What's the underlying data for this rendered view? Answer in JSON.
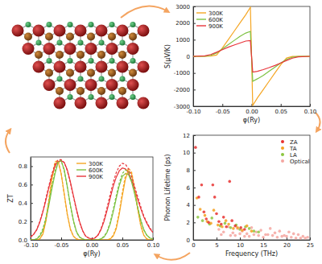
{
  "chart_data": [
    {
      "type": "line",
      "x_label": "φ(Ry)",
      "y_label": "S(μV/K)",
      "x": [
        -0.1,
        -0.08,
        -0.07,
        -0.06,
        -0.05,
        -0.04,
        -0.03,
        -0.02,
        -0.01,
        -0.002,
        0.002,
        0.01,
        0.02,
        0.03,
        0.04,
        0.05,
        0.06,
        0.07,
        0.08,
        0.1
      ],
      "xlim": [
        -0.1,
        0.1
      ],
      "xticks": [
        {
          "value": -0.1,
          "label": "-0.10"
        },
        {
          "value": -0.05,
          "label": "-0.05"
        },
        {
          "value": 0,
          "label": "0.00"
        },
        {
          "value": 0.05,
          "label": "0.05"
        },
        {
          "value": 0.1,
          "label": "0.10"
        }
      ],
      "ylim": [
        -3000,
        3000
      ],
      "yticks": [
        -3000,
        -2000,
        -1000,
        0,
        1000,
        2000,
        3000
      ],
      "legend": "upper left",
      "series": [
        {
          "name": "300K",
          "color": "#f5a623",
          "line_style": "solid",
          "values": [
            0,
            0,
            20,
            80,
            500,
            1000,
            1500,
            2000,
            2500,
            2950,
            -2950,
            -2500,
            -2000,
            -1500,
            -1000,
            -500,
            -100,
            -10,
            0,
            0
          ]
        },
        {
          "name": "600K",
          "color": "#7dc242",
          "line_style": "solid",
          "values": [
            0,
            10,
            60,
            200,
            450,
            700,
            950,
            1200,
            1400,
            1500,
            -1500,
            -1350,
            -1150,
            -900,
            -650,
            -400,
            -180,
            -50,
            -10,
            0
          ]
        },
        {
          "name": "900K",
          "color": "#e8343a",
          "line_style": "solid",
          "values": [
            0,
            30,
            110,
            250,
            400,
            550,
            680,
            800,
            920,
            950,
            -950,
            -900,
            -800,
            -680,
            -550,
            -400,
            -250,
            -110,
            -30,
            0
          ]
        }
      ]
    },
    {
      "type": "scatter",
      "x_label": "Frequency (THz)",
      "y_label": "Phonon Lifetime (ps)",
      "xlim": [
        0,
        25
      ],
      "xticks": [
        0,
        5,
        10,
        15,
        20,
        25
      ],
      "ylim": [
        0,
        12
      ],
      "yticks": [
        0,
        2,
        4,
        6,
        8,
        10,
        12
      ],
      "legend": "upper right",
      "series": [
        {
          "name": "ZA",
          "color": "#e8302f",
          "marker": "circle",
          "x": [
            0.5,
            1.2,
            1.8,
            2.3,
            2.8,
            3.3,
            4.2,
            4.6,
            5.0,
            5.5,
            6.0,
            6.5,
            7.1,
            7.8,
            8.3,
            9.0,
            10.2,
            11.0
          ],
          "values": [
            10.6,
            4.9,
            6.3,
            3.2,
            2.4,
            2.0,
            6.3,
            4.9,
            3.0,
            2.1,
            1.8,
            2.6,
            1.5,
            6.7,
            2.2,
            1.6,
            1.4,
            1.2
          ]
        },
        {
          "name": "TA",
          "color": "#f5a020",
          "marker": "circle",
          "x": [
            0.8,
            1.5,
            2.5,
            3.0,
            3.8,
            4.4,
            5.3,
            6.2,
            7.0,
            7.6,
            8.6,
            9.5,
            10.5,
            11.5,
            12.5
          ],
          "values": [
            4.8,
            3.5,
            2.8,
            2.1,
            1.9,
            3.4,
            1.7,
            1.5,
            2.2,
            1.8,
            1.3,
            1.4,
            1.1,
            1.6,
            1.0
          ]
        },
        {
          "name": "LA",
          "color": "#8cc63f",
          "marker": "circle",
          "x": [
            1.0,
            2.0,
            3.5,
            4.0,
            5.8,
            6.8,
            8.0,
            9.2,
            10.0,
            11.2,
            12.0,
            13.0,
            14.0
          ],
          "values": [
            2.6,
            2.2,
            1.8,
            2.5,
            1.6,
            1.9,
            1.4,
            1.7,
            1.2,
            1.5,
            1.3,
            1.0,
            0.9
          ]
        },
        {
          "name": "Optical",
          "color": "#f4a6a0",
          "marker": "circle",
          "x": [
            5.5,
            6.5,
            7.5,
            8.5,
            9.5,
            10.5,
            11.5,
            12.5,
            13.5,
            14.5,
            15.5,
            16.5,
            17.5,
            18.5,
            19.5,
            20.5,
            21.5,
            22.5,
            23.5,
            24.5,
            9,
            11,
            13,
            15,
            17,
            19,
            21,
            23,
            6,
            8,
            10,
            12,
            14,
            16,
            18,
            20,
            22,
            24
          ],
          "values": [
            1.2,
            0.9,
            1.5,
            0.8,
            1.3,
            1.0,
            0.7,
            1.4,
            0.9,
            1.1,
            0.6,
            1.3,
            0.8,
            1.0,
            0.5,
            0.9,
            0.7,
            0.6,
            0.4,
            0.3,
            0.5,
            0.4,
            0.6,
            0.3,
            0.5,
            0.4,
            0.3,
            0.2,
            0.6,
            0.5,
            0.7,
            0.4,
            0.5,
            0.6,
            0.3,
            0.4,
            0.2,
            0.2
          ]
        }
      ]
    },
    {
      "type": "line",
      "x_label": "φ(Ry)",
      "y_label": "ZT",
      "x": [
        -0.1,
        -0.095,
        -0.09,
        -0.085,
        -0.08,
        -0.075,
        -0.07,
        -0.065,
        -0.06,
        -0.055,
        -0.05,
        -0.045,
        -0.04,
        -0.035,
        -0.03,
        -0.025,
        -0.02,
        -0.015,
        -0.01,
        -0.005,
        0,
        0.005,
        0.01,
        0.015,
        0.02,
        0.025,
        0.03,
        0.035,
        0.04,
        0.045,
        0.05,
        0.055,
        0.06,
        0.065,
        0.07,
        0.075,
        0.08,
        0.085,
        0.09,
        0.095,
        0.1
      ],
      "xlim": [
        -0.1,
        0.1
      ],
      "xticks": [
        {
          "value": -0.1,
          "label": "-0.10"
        },
        {
          "value": -0.05,
          "label": "-0.05"
        },
        {
          "value": 0,
          "label": "0.00"
        },
        {
          "value": 0.05,
          "label": "0.05"
        },
        {
          "value": 0.1,
          "label": "0.10"
        }
      ],
      "ylim": [
        0,
        0.9
      ],
      "yticks": [
        {
          "value": 0,
          "label": "0.0"
        },
        0.2,
        0.4,
        0.6,
        0.8
      ],
      "legend": "upper center",
      "series": [
        {
          "name": "300K",
          "color": "#f5a623",
          "line_style": "solid",
          "values": [
            0,
            0,
            0,
            0.01,
            0.06,
            0.2,
            0.42,
            0.66,
            0.83,
            0.85,
            0.72,
            0.5,
            0.28,
            0.12,
            0.04,
            0.01,
            0,
            0,
            0,
            0,
            0,
            0,
            0,
            0,
            0,
            0,
            0.01,
            0.04,
            0.12,
            0.28,
            0.48,
            0.66,
            0.75,
            0.72,
            0.56,
            0.34,
            0.16,
            0.05,
            0.01,
            0,
            0
          ]
        },
        {
          "name": "600K",
          "color": "#7dc242",
          "line_style": "solid",
          "values": [
            0,
            0,
            0.01,
            0.04,
            0.1,
            0.22,
            0.38,
            0.56,
            0.72,
            0.84,
            0.86,
            0.76,
            0.58,
            0.38,
            0.21,
            0.09,
            0.03,
            0.01,
            0,
            0,
            0,
            0,
            0,
            0.01,
            0.03,
            0.08,
            0.17,
            0.3,
            0.45,
            0.59,
            0.69,
            0.72,
            0.71,
            0.63,
            0.5,
            0.35,
            0.21,
            0.11,
            0.05,
            0.02,
            0.01
          ]
        },
        {
          "name": "900K",
          "color": "#e8343a",
          "line_style": "solid",
          "values": [
            0.03,
            0.06,
            0.11,
            0.19,
            0.3,
            0.43,
            0.57,
            0.7,
            0.8,
            0.85,
            0.86,
            0.84,
            0.76,
            0.63,
            0.48,
            0.33,
            0.2,
            0.1,
            0.04,
            0.02,
            0.01,
            0.02,
            0.05,
            0.11,
            0.2,
            0.32,
            0.45,
            0.58,
            0.68,
            0.75,
            0.78,
            0.77,
            0.73,
            0.65,
            0.55,
            0.44,
            0.34,
            0.25,
            0.18,
            0.12,
            0.08
          ]
        },
        {
          "color": "#f5a623",
          "line_style": "dashed",
          "values": [
            0,
            0,
            0,
            0.01,
            0.07,
            0.22,
            0.45,
            0.69,
            0.85,
            0.86,
            0.72,
            0.49,
            0.27,
            0.11,
            0.04,
            0.01,
            0,
            0,
            0,
            0,
            0,
            0,
            0,
            0,
            0,
            0,
            0.01,
            0.05,
            0.14,
            0.31,
            0.52,
            0.7,
            0.78,
            0.74,
            0.57,
            0.34,
            0.15,
            0.05,
            0.01,
            0,
            0
          ]
        },
        {
          "color": "#7dc242",
          "line_style": "dashed",
          "values": [
            0,
            0,
            0.01,
            0.05,
            0.12,
            0.24,
            0.41,
            0.59,
            0.75,
            0.85,
            0.86,
            0.75,
            0.57,
            0.37,
            0.2,
            0.08,
            0.03,
            0.01,
            0,
            0,
            0,
            0,
            0,
            0.01,
            0.04,
            0.09,
            0.19,
            0.33,
            0.48,
            0.62,
            0.72,
            0.76,
            0.74,
            0.65,
            0.51,
            0.36,
            0.22,
            0.11,
            0.05,
            0.02,
            0.01
          ]
        },
        {
          "color": "#e8343a",
          "line_style": "dashed",
          "values": [
            0.03,
            0.06,
            0.11,
            0.2,
            0.31,
            0.45,
            0.59,
            0.72,
            0.82,
            0.87,
            0.87,
            0.84,
            0.75,
            0.62,
            0.47,
            0.32,
            0.19,
            0.1,
            0.04,
            0.02,
            0.01,
            0.02,
            0.05,
            0.12,
            0.22,
            0.35,
            0.49,
            0.62,
            0.73,
            0.8,
            0.83,
            0.82,
            0.77,
            0.69,
            0.58,
            0.47,
            0.36,
            0.26,
            0.19,
            0.13,
            0.08
          ]
        }
      ]
    }
  ]
}
